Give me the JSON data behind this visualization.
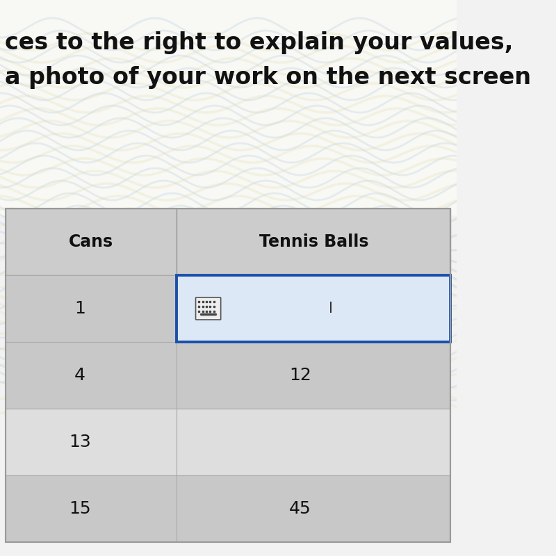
{
  "title_line1": "ces to the right to explain your values,",
  "title_line2": "a photo of your work on the next screen",
  "col1_header": "Cans",
  "col2_header": "Tennis Balls",
  "rows": [
    {
      "cans": "1",
      "balls": ""
    },
    {
      "cans": "4",
      "balls": "12"
    },
    {
      "cans": "13",
      "balls": ""
    },
    {
      "cans": "15",
      "balls": "45"
    }
  ],
  "bg_color": "#f2f2f2",
  "top_bg_color": "#f5f5f0",
  "header_bg": "#cccccc",
  "row_dark_bg": "#c8c8c8",
  "row_light_bg": "#dedede",
  "cell_highlight_bg": "#dce8f5",
  "cell_highlight_border": "#1a4faa",
  "text_color": "#111111",
  "header_font_size": 17,
  "cell_font_size": 18,
  "title_font_size": 24,
  "wavy_line_color": "#d0d8c0",
  "wavy_line_color2": "#c8dce8"
}
